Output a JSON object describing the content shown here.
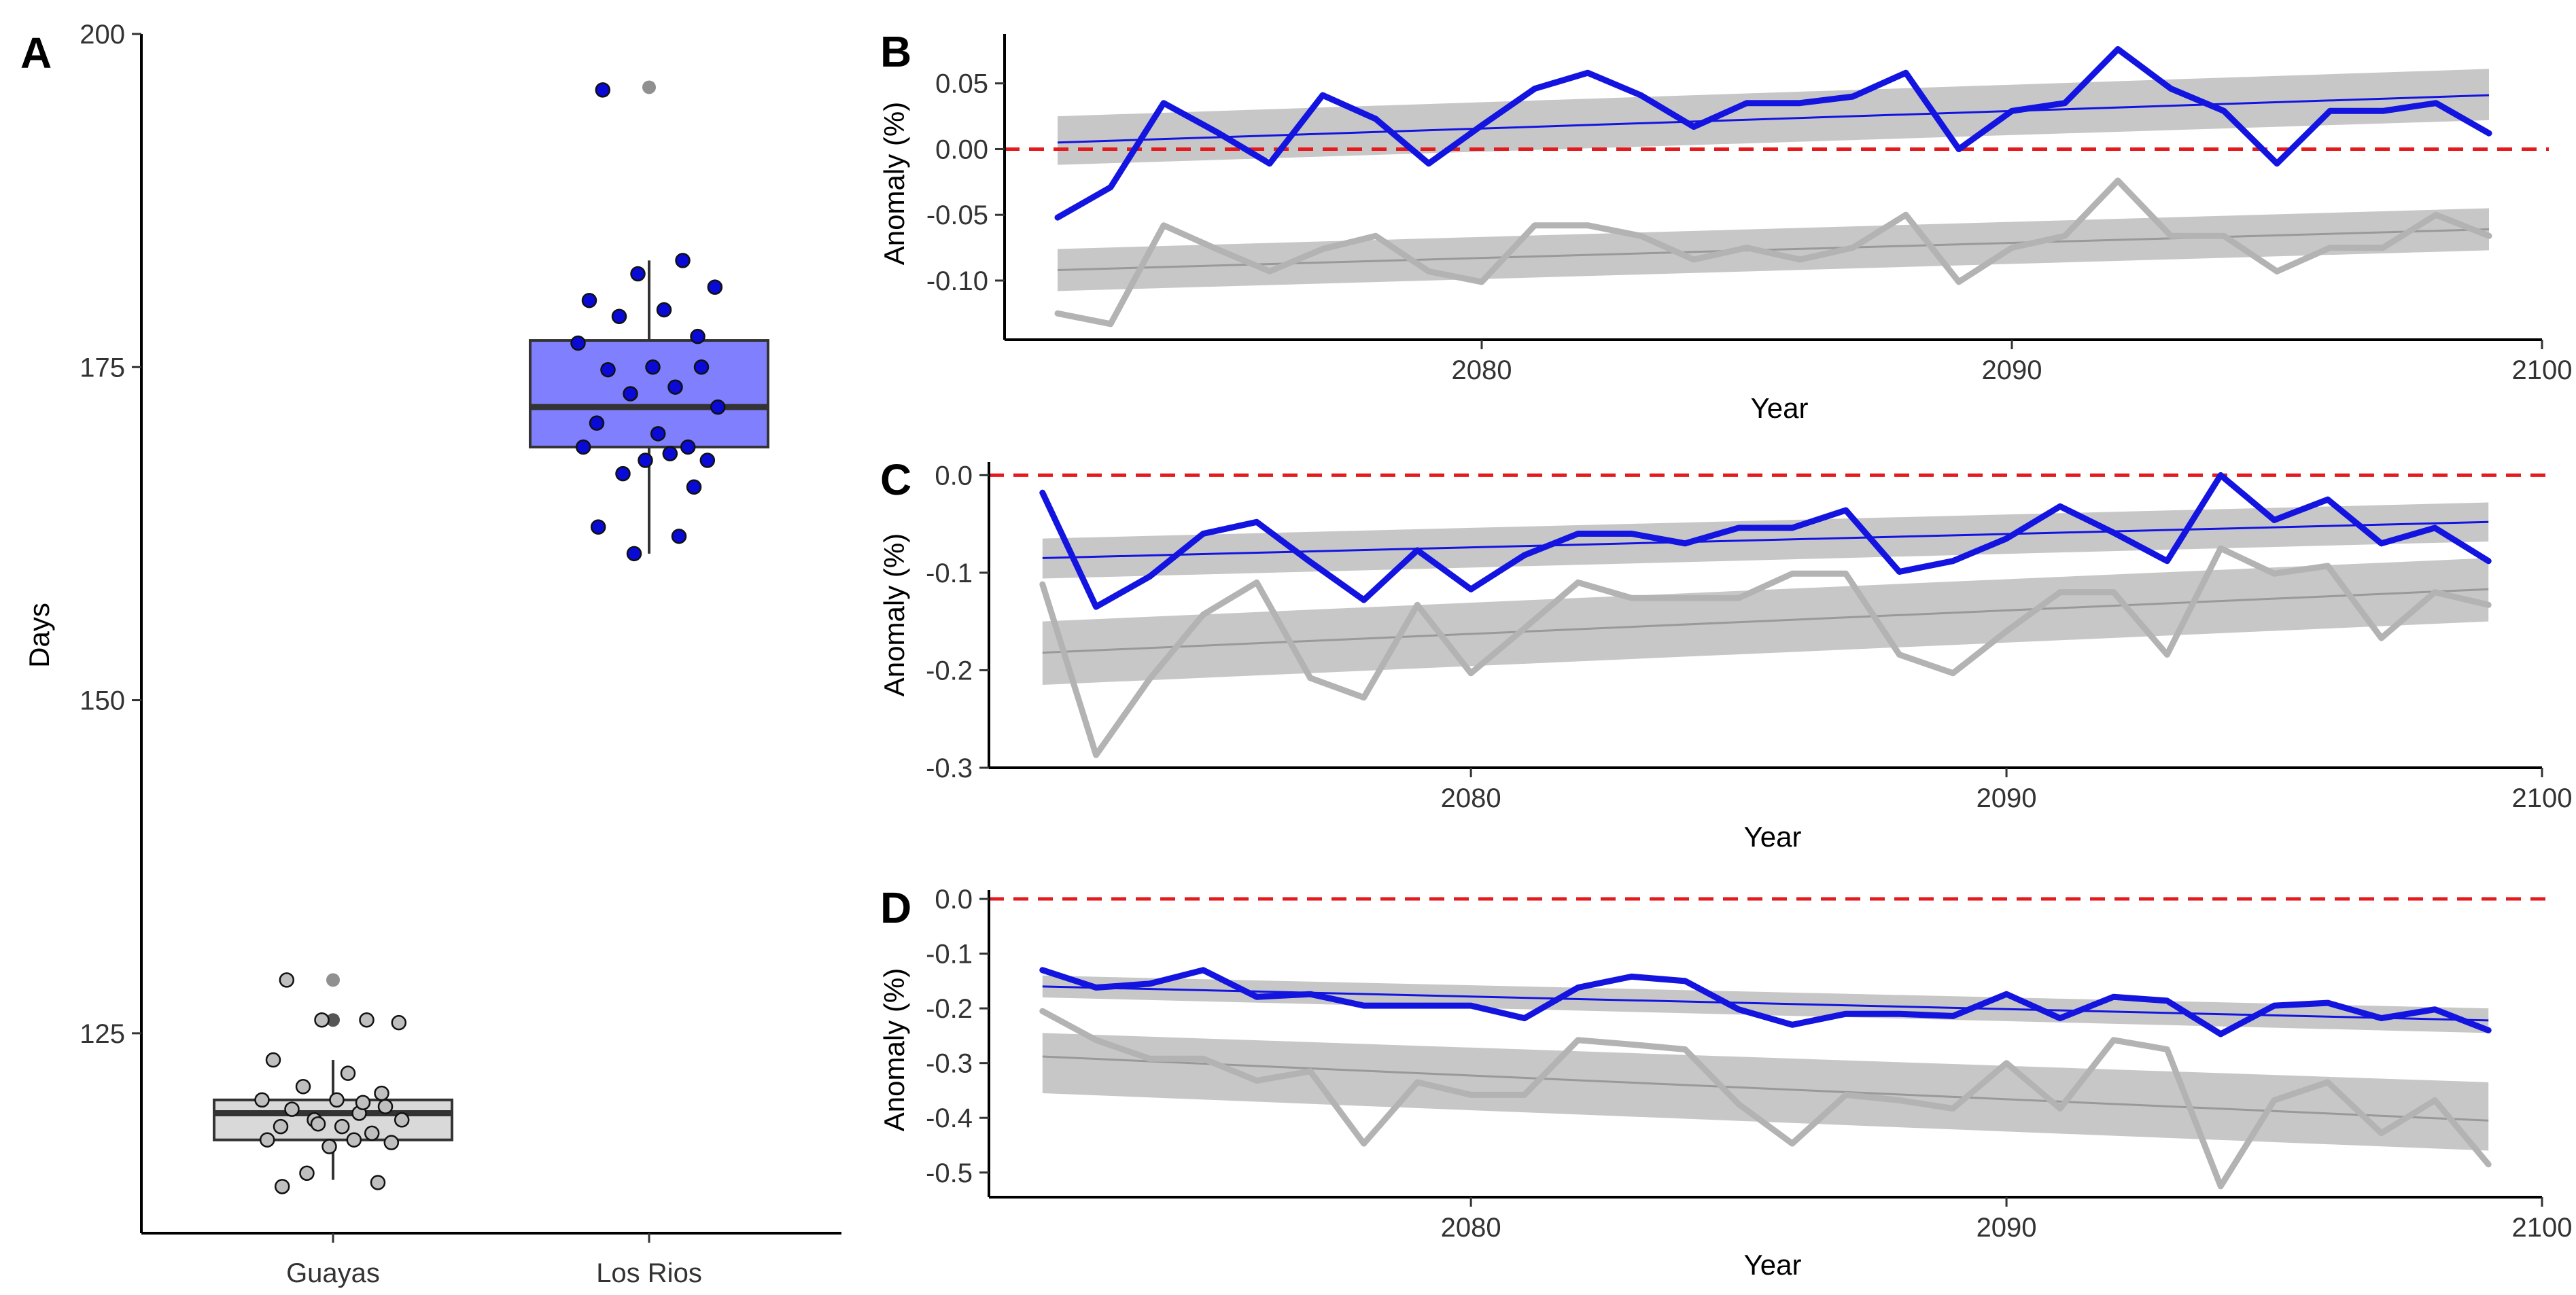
{
  "figure": {
    "colors": {
      "blue": "#1414e0",
      "grey": "#b3b3b3",
      "ribbon": "#bdbdbd",
      "zero_line": "#e41a1c",
      "box_blue": "#8080ff",
      "box_grey": "#d9d9d9",
      "dot_blue": "#0a0ad6",
      "dot_grey": "#bfbfbf"
    }
  },
  "chart_data": [
    {
      "panel": "A",
      "type": "box",
      "title": "",
      "xlabel": "",
      "ylabel": "Days",
      "ylim": [
        110,
        200
      ],
      "yticks": [
        125,
        150,
        175,
        200
      ],
      "categories": [
        "Guayas",
        "Los Rios"
      ],
      "boxes": [
        {
          "name": "Guayas",
          "color": "grey",
          "q1": 117,
          "median": 119,
          "q3": 120,
          "whisker_low": 114,
          "whisker_high": 123,
          "outliers": [
            129,
            126
          ],
          "points": [
            129,
            126,
            126,
            125.8,
            123,
            122,
            121,
            120.5,
            120,
            120,
            119.5,
            119.3,
            119,
            118.5,
            118.5,
            118,
            118,
            117.5,
            117,
            117,
            116.5,
            116.8,
            114.5,
            113.8,
            113.5,
            119.8,
            118.2
          ]
        },
        {
          "name": "Los Rios",
          "color": "blue",
          "q1": 169,
          "median": 172,
          "q3": 177,
          "whisker_low": 161,
          "whisker_high": 183,
          "outliers": [
            196
          ],
          "points": [
            195.8,
            183,
            182,
            181,
            180,
            179.3,
            178.8,
            177.3,
            176.8,
            175,
            175,
            174.8,
            173.5,
            173,
            172,
            170.8,
            170,
            169,
            169,
            168.5,
            168,
            168,
            167,
            166,
            163,
            162.3,
            161
          ]
        }
      ]
    },
    {
      "panel": "B",
      "type": "line",
      "title": "",
      "xlabel": "Year",
      "ylabel": "Anomaly (%)",
      "xlim": [
        2071,
        2100
      ],
      "ylim": [
        -0.145,
        0.085
      ],
      "xticks": [
        2080,
        2090,
        2100
      ],
      "yticks": [
        -0.1,
        -0.05,
        0.0,
        0.05
      ],
      "ytick_labels": [
        "-0.10",
        "-0.05",
        "0.00",
        "0.05"
      ],
      "reference_line": 0.0,
      "x": [
        2072,
        2073,
        2074,
        2075,
        2076,
        2077,
        2078,
        2079,
        2080,
        2081,
        2082,
        2083,
        2084,
        2085,
        2086,
        2087,
        2088,
        2089,
        2090,
        2091,
        2092,
        2093,
        2094,
        2095,
        2096,
        2097,
        2098,
        2099
      ],
      "series": [
        {
          "name": "blue",
          "color": "blue",
          "values": [
            -0.052,
            -0.029,
            0.035,
            0.013,
            -0.011,
            0.041,
            0.023,
            -0.011,
            0.018,
            0.046,
            0.058,
            0.041,
            0.017,
            0.035,
            0.035,
            0.04,
            0.058,
            0.0,
            0.029,
            0.035,
            0.076,
            0.046,
            0.029,
            -0.011,
            0.029,
            0.029,
            0.035,
            0.012
          ],
          "trend": [
            0.005,
            0.041
          ],
          "band": [
            [
              -0.012,
              0.025
            ],
            [
              0.022,
              0.061
            ]
          ]
        },
        {
          "name": "grey",
          "color": "grey",
          "values": [
            -0.125,
            -0.133,
            -0.058,
            -0.076,
            -0.093,
            -0.076,
            -0.066,
            -0.093,
            -0.101,
            -0.058,
            -0.058,
            -0.066,
            -0.084,
            -0.075,
            -0.084,
            -0.075,
            -0.05,
            -0.101,
            -0.075,
            -0.066,
            -0.024,
            -0.066,
            -0.066,
            -0.093,
            -0.075,
            -0.075,
            -0.05,
            -0.066
          ],
          "trend": [
            -0.092,
            -0.061
          ],
          "band": [
            [
              -0.108,
              -0.076
            ],
            [
              -0.077,
              -0.045
            ]
          ]
        }
      ]
    },
    {
      "panel": "C",
      "type": "line",
      "title": "",
      "xlabel": "Year",
      "ylabel": "Anomaly (%)",
      "xlim": [
        2071,
        2100
      ],
      "ylim": [
        -0.3,
        0.01
      ],
      "xticks": [
        2080,
        2090,
        2100
      ],
      "yticks": [
        -0.3,
        -0.2,
        -0.1,
        0.0
      ],
      "ytick_labels": [
        "-0.3",
        "-0.2",
        "-0.1",
        "0.0"
      ],
      "reference_line": 0.0,
      "x": [
        2072,
        2073,
        2074,
        2075,
        2076,
        2077,
        2078,
        2079,
        2080,
        2081,
        2082,
        2083,
        2084,
        2085,
        2086,
        2087,
        2088,
        2089,
        2090,
        2091,
        2092,
        2093,
        2094,
        2095,
        2096,
        2097,
        2098,
        2099
      ],
      "series": [
        {
          "name": "blue",
          "color": "blue",
          "values": [
            -0.018,
            -0.135,
            -0.104,
            -0.06,
            -0.048,
            -0.089,
            -0.128,
            -0.077,
            -0.117,
            -0.082,
            -0.06,
            -0.06,
            -0.07,
            -0.054,
            -0.054,
            -0.036,
            -0.099,
            -0.088,
            -0.065,
            -0.032,
            -0.059,
            -0.088,
            0.0,
            -0.046,
            -0.025,
            -0.07,
            -0.054,
            -0.088
          ],
          "trend": [
            -0.085,
            -0.048
          ],
          "band": [
            [
              -0.106,
              -0.065
            ],
            [
              -0.068,
              -0.028
            ]
          ]
        },
        {
          "name": "grey",
          "color": "grey",
          "values": [
            -0.112,
            -0.287,
            -0.209,
            -0.143,
            -0.11,
            -0.208,
            -0.228,
            -0.133,
            -0.203,
            -0.157,
            -0.11,
            -0.126,
            -0.126,
            -0.126,
            -0.101,
            -0.101,
            -0.184,
            -0.203,
            -0.16,
            -0.12,
            -0.12,
            -0.184,
            -0.075,
            -0.101,
            -0.093,
            -0.167,
            -0.12,
            -0.133
          ],
          "trend": [
            -0.182,
            -0.117
          ],
          "band": [
            [
              -0.215,
              -0.15
            ],
            [
              -0.15,
              -0.085
            ]
          ]
        }
      ]
    },
    {
      "panel": "D",
      "type": "line",
      "title": "",
      "xlabel": "Year",
      "ylabel": "Anomaly (%)",
      "xlim": [
        2071,
        2100
      ],
      "ylim": [
        -0.545,
        0.01
      ],
      "xticks": [
        2080,
        2090,
        2100
      ],
      "yticks": [
        -0.5,
        -0.4,
        -0.3,
        -0.2,
        -0.1,
        0.0
      ],
      "ytick_labels": [
        "-0.5",
        "-0.4",
        "-0.3",
        "-0.2",
        "-0.1",
        "0.0"
      ],
      "reference_line": 0.0,
      "x": [
        2072,
        2073,
        2074,
        2075,
        2076,
        2077,
        2078,
        2079,
        2080,
        2081,
        2082,
        2083,
        2084,
        2085,
        2086,
        2087,
        2088,
        2089,
        2090,
        2091,
        2092,
        2093,
        2094,
        2095,
        2096,
        2097,
        2098,
        2099
      ],
      "series": [
        {
          "name": "blue",
          "color": "blue",
          "values": [
            -0.13,
            -0.162,
            -0.155,
            -0.13,
            -0.179,
            -0.174,
            -0.195,
            -0.195,
            -0.195,
            -0.218,
            -0.162,
            -0.142,
            -0.15,
            -0.202,
            -0.23,
            -0.21,
            -0.21,
            -0.214,
            -0.174,
            -0.218,
            -0.179,
            -0.186,
            -0.247,
            -0.195,
            -0.19,
            -0.218,
            -0.202,
            -0.24
          ],
          "trend": [
            -0.16,
            -0.222
          ],
          "band": [
            [
              -0.14,
              -0.18
            ],
            [
              -0.2,
              -0.245
            ]
          ]
        },
        {
          "name": "grey",
          "color": "grey",
          "values": [
            -0.205,
            -0.258,
            -0.292,
            -0.292,
            -0.332,
            -0.315,
            -0.447,
            -0.335,
            -0.358,
            -0.358,
            -0.258,
            -0.266,
            -0.275,
            -0.375,
            -0.447,
            -0.358,
            -0.368,
            -0.383,
            -0.3,
            -0.383,
            -0.258,
            -0.275,
            -0.525,
            -0.368,
            -0.335,
            -0.428,
            -0.368,
            -0.485
          ],
          "trend": [
            -0.288,
            -0.405
          ],
          "band": [
            [
              -0.245,
              -0.355
            ],
            [
              -0.335,
              -0.46
            ]
          ]
        }
      ]
    }
  ]
}
